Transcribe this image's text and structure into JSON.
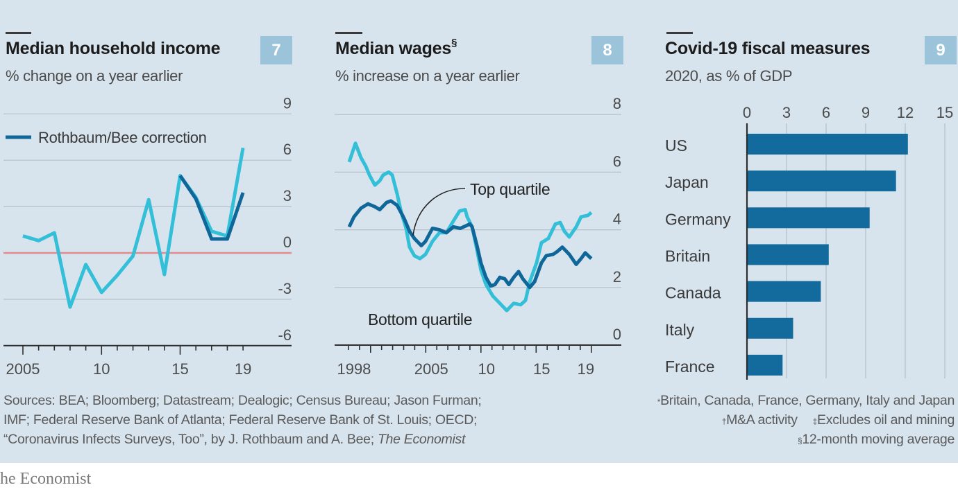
{
  "colors": {
    "background": "#d7e4ed",
    "badge": "#9bc3d9",
    "grid": "#b4c0c9",
    "axis": "#2e2e2e",
    "zero_line": "#e48a8e",
    "annotation_line": "#222222"
  },
  "chart_data": [
    {
      "number": "7",
      "type": "line",
      "title": "Median household income",
      "subtitle": "% change on a year earlier",
      "xlabel": "",
      "ylabel": "",
      "x": [
        2005,
        2006,
        2007,
        2008,
        2009,
        2010,
        2011,
        2012,
        2013,
        2014,
        2015,
        2016,
        2017,
        2018,
        2019
      ],
      "xtick_labels": [
        {
          "label": "2005",
          "year": 2005
        },
        {
          "label": "10",
          "year": 2010
        },
        {
          "label": "15",
          "year": 2015
        },
        {
          "label": "19",
          "year": 2019
        }
      ],
      "ylim": [
        -6,
        9
      ],
      "yticks": [
        -6,
        -3,
        0,
        3,
        6,
        9
      ],
      "ytick_labels": [
        "-6",
        "-3",
        "0",
        "3",
        "6",
        "9"
      ],
      "grid": true,
      "legend": "top-left",
      "series": [
        {
          "name": null,
          "legend": false,
          "color": "#33bfd8",
          "x": [
            2005,
            2006,
            2007,
            2008,
            2009,
            2010,
            2011,
            2012,
            2013,
            2014,
            2015,
            2016,
            2017,
            2018,
            2019
          ],
          "values": [
            1.1,
            0.8,
            1.3,
            -3.5,
            -0.75,
            -2.55,
            -1.45,
            -0.2,
            3.45,
            -1.4,
            5.0,
            3.6,
            1.4,
            1.1,
            6.8
          ]
        },
        {
          "name": "Rothbaum/Bee correction",
          "legend": true,
          "color": "#0f6699",
          "x": [
            2015,
            2016,
            2017,
            2018,
            2019
          ],
          "values": [
            5.0,
            3.5,
            0.9,
            0.9,
            3.9
          ]
        }
      ]
    },
    {
      "number": "8",
      "type": "line",
      "title": "Median wages",
      "title_mark": "§",
      "subtitle": "% increase on a year earlier",
      "xlabel": "",
      "ylabel": "",
      "xlim": [
        1998,
        2020
      ],
      "xtick_labels": [
        {
          "label": "1998",
          "year": 1998
        },
        {
          "label": "2005",
          "year": 2005
        },
        {
          "label": "10",
          "year": 2010
        },
        {
          "label": "15",
          "year": 2015
        },
        {
          "label": "19",
          "year": 2019
        }
      ],
      "ylim": [
        0,
        8
      ],
      "yticks": [
        0,
        2,
        4,
        6,
        8
      ],
      "ytick_labels": [
        "0",
        "2",
        "4",
        "6",
        "8"
      ],
      "grid": true,
      "legend": "annotations",
      "series": [
        {
          "name": "Bottom quartile",
          "color": "#33bfd8",
          "points": [
            [
              1998.06,
              6.35
            ],
            [
              1998.63,
              7.0
            ],
            [
              1999.13,
              6.5
            ],
            [
              1999.57,
              6.2
            ],
            [
              1999.89,
              5.9
            ],
            [
              2000.39,
              5.55
            ],
            [
              2000.83,
              5.7
            ],
            [
              2001.14,
              5.9
            ],
            [
              2001.65,
              6.0
            ],
            [
              2001.96,
              5.9
            ],
            [
              2002.4,
              5.25
            ],
            [
              2002.78,
              4.6
            ],
            [
              2003.22,
              4.05
            ],
            [
              2003.53,
              3.4
            ],
            [
              2003.97,
              3.1
            ],
            [
              2004.48,
              3.0
            ],
            [
              2004.98,
              3.15
            ],
            [
              2005.61,
              3.6
            ],
            [
              2006.24,
              3.9
            ],
            [
              2006.87,
              3.9
            ],
            [
              2007.5,
              4.3
            ],
            [
              2008.06,
              4.65
            ],
            [
              2008.57,
              4.7
            ],
            [
              2008.75,
              4.45
            ],
            [
              2009.2,
              4.1
            ],
            [
              2009.64,
              3.3
            ],
            [
              2010.0,
              2.6
            ],
            [
              2010.45,
              2.1
            ],
            [
              2011.08,
              1.7
            ],
            [
              2011.71,
              1.45
            ],
            [
              2012.34,
              1.2
            ],
            [
              2012.97,
              1.45
            ],
            [
              2013.6,
              1.4
            ],
            [
              2014.04,
              1.55
            ],
            [
              2014.42,
              2.2
            ],
            [
              2015.04,
              2.85
            ],
            [
              2015.48,
              3.55
            ],
            [
              2016.11,
              3.7
            ],
            [
              2016.74,
              4.2
            ],
            [
              2017.18,
              4.25
            ],
            [
              2017.56,
              3.95
            ],
            [
              2018.0,
              3.75
            ],
            [
              2018.63,
              4.1
            ],
            [
              2019.07,
              4.45
            ],
            [
              2019.7,
              4.5
            ],
            [
              2020.0,
              4.6
            ]
          ]
        },
        {
          "name": "Top quartile",
          "color": "#0f6699",
          "points": [
            [
              1998.06,
              4.1
            ],
            [
              1998.5,
              4.45
            ],
            [
              1999.13,
              4.75
            ],
            [
              1999.76,
              4.9
            ],
            [
              2000.39,
              4.8
            ],
            [
              2000.83,
              4.7
            ],
            [
              2001.46,
              4.95
            ],
            [
              2001.84,
              5.0
            ],
            [
              2002.4,
              4.85
            ],
            [
              2002.9,
              4.5
            ],
            [
              2003.09,
              4.35
            ],
            [
              2003.53,
              3.95
            ],
            [
              2003.97,
              3.7
            ],
            [
              2004.6,
              3.45
            ],
            [
              2004.98,
              3.6
            ],
            [
              2005.61,
              4.05
            ],
            [
              2006.24,
              4.0
            ],
            [
              2006.87,
              3.9
            ],
            [
              2007.5,
              4.1
            ],
            [
              2008.13,
              4.05
            ],
            [
              2009.0,
              4.2
            ],
            [
              2009.2,
              4.1
            ],
            [
              2009.64,
              3.45
            ],
            [
              2010.0,
              2.85
            ],
            [
              2010.45,
              2.35
            ],
            [
              2010.89,
              2.05
            ],
            [
              2011.27,
              2.1
            ],
            [
              2011.71,
              2.35
            ],
            [
              2012.15,
              2.3
            ],
            [
              2012.53,
              2.1
            ],
            [
              2012.97,
              2.35
            ],
            [
              2013.41,
              2.55
            ],
            [
              2013.79,
              2.3
            ],
            [
              2014.42,
              2.0
            ],
            [
              2014.86,
              2.2
            ],
            [
              2015.48,
              2.85
            ],
            [
              2015.92,
              3.1
            ],
            [
              2016.55,
              3.15
            ],
            [
              2016.93,
              3.25
            ],
            [
              2017.37,
              3.4
            ],
            [
              2018.0,
              3.15
            ],
            [
              2018.63,
              2.8
            ],
            [
              2019.07,
              3.0
            ],
            [
              2019.45,
              3.2
            ],
            [
              2020.0,
              3.0
            ]
          ]
        }
      ],
      "annotations": [
        {
          "text": "Top quartile",
          "series": "Top quartile",
          "arrow": true
        },
        {
          "text": "Bottom quartile",
          "series": "Bottom quartile",
          "arrow": false
        }
      ]
    },
    {
      "number": "9",
      "type": "bar",
      "orientation": "horizontal",
      "title": "Covid-19 fiscal measures",
      "subtitle": "2020, as % of GDP",
      "xlabel": "",
      "ylabel": "",
      "color": "#136a9c",
      "categories": [
        "US",
        "Japan",
        "Germany",
        "Britain",
        "Canada",
        "Italy",
        "France"
      ],
      "values": [
        12.2,
        11.3,
        9.3,
        6.2,
        5.6,
        3.5,
        2.7
      ],
      "xlim": [
        0,
        15
      ],
      "xticks": [
        0,
        3,
        6,
        9,
        12,
        15
      ],
      "xtick_labels": [
        "0",
        "3",
        "6",
        "9",
        "12",
        "15"
      ],
      "axis_position": "top",
      "grid": true
    }
  ],
  "footnotes": {
    "sources": [
      "Sources: BEA; Bloomberg; Datastream; Dealogic; Census Bureau; Jason Furman;",
      "IMF; Federal Reserve Bank of Atlanta; Federal Reserve Bank of St. Louis; OECD;",
      "“Coronavirus Infects Surveys, Too”, by J. Rothbaum and A. Bee; "
    ],
    "sources_italic_tail": "The Economist",
    "notes": [
      {
        "mark": "*",
        "text": "Britain, Canada, France, Germany, Italy and Japan"
      },
      {
        "mark": "†",
        "text": "M&A activity"
      },
      {
        "mark": "‡",
        "text": "Excludes oil and mining"
      },
      {
        "mark": "§",
        "text": "12-month moving average"
      }
    ]
  },
  "footer": {
    "logo_text": "he Economist"
  }
}
